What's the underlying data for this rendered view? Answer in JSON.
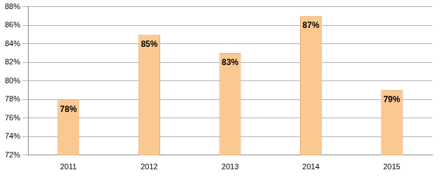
{
  "chart_data": {
    "type": "bar",
    "categories": [
      "2011",
      "2012",
      "2013",
      "2014",
      "2015"
    ],
    "values": [
      78,
      85,
      83,
      87,
      79
    ],
    "value_labels": [
      "78%",
      "85%",
      "83%",
      "87%",
      "79%"
    ],
    "data_labels": true,
    "color": "#fcc892",
    "ylim": [
      72,
      88
    ],
    "yticks": [
      {
        "value": 72,
        "label": "72%"
      },
      {
        "value": 74,
        "label": "74%"
      },
      {
        "value": 76,
        "label": "76%"
      },
      {
        "value": 78,
        "label": "78%"
      },
      {
        "value": 80,
        "label": "80%"
      },
      {
        "value": 82,
        "label": "82%"
      },
      {
        "value": 84,
        "label": "84%"
      },
      {
        "value": 86,
        "label": "86%"
      },
      {
        "value": 88,
        "label": "88%"
      }
    ],
    "grid": true
  }
}
